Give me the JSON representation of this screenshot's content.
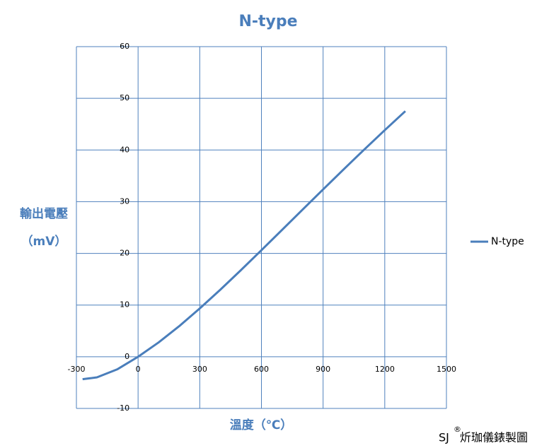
{
  "chart_data": {
    "type": "line",
    "title": "N-type",
    "y_label": [
      "輸出電壓",
      "（mV）"
    ],
    "x_label": "溫度（℃）",
    "x": [
      -270,
      -200,
      -100,
      0,
      100,
      200,
      300,
      400,
      500,
      600,
      700,
      800,
      900,
      1000,
      1100,
      1200,
      1300
    ],
    "series": [
      {
        "name": "N-type",
        "color": "#4a7ebb",
        "values": [
          -4.345,
          -3.99,
          -2.407,
          0,
          2.774,
          5.913,
          9.341,
          12.974,
          16.748,
          20.613,
          24.527,
          28.455,
          32.371,
          36.256,
          40.087,
          43.846,
          47.513
        ]
      }
    ],
    "xlim": [
      -300,
      1500
    ],
    "xticks": [
      -300,
      0,
      300,
      600,
      900,
      1200,
      1500
    ],
    "ylim": [
      -10,
      60
    ],
    "yticks": [
      -10,
      0,
      10,
      20,
      30,
      40,
      50,
      60
    ],
    "grid": true,
    "legend": "right",
    "text_color": "#4a7ebb",
    "grid_color": "#4f81bd"
  },
  "footer": {
    "brand": "SJ",
    "mark": "®",
    "text": "炘珈儀錶製圖"
  }
}
